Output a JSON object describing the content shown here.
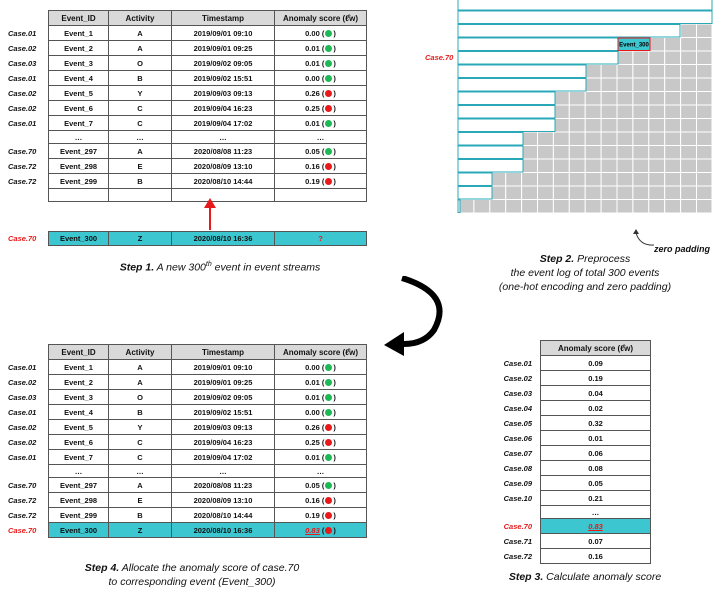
{
  "table": {
    "headers": [
      "Event_ID",
      "Activity",
      "Timestamp",
      "Anomaly score (ℓ̂w)"
    ],
    "rows": [
      {
        "case": "Case.01",
        "id": "Event_1",
        "act": "A",
        "ts": "2019/09/01 09:10",
        "score": "0.00",
        "status": "green"
      },
      {
        "case": "Case.02",
        "id": "Event_2",
        "act": "A",
        "ts": "2019/09/01 09:25",
        "score": "0.01",
        "status": "green"
      },
      {
        "case": "Case.03",
        "id": "Event_3",
        "act": "O",
        "ts": "2019/09/02 09:05",
        "score": "0.01",
        "status": "green"
      },
      {
        "case": "Case.01",
        "id": "Event_4",
        "act": "B",
        "ts": "2019/09/02 15:51",
        "score": "0.00",
        "status": "green"
      },
      {
        "case": "Case.02",
        "id": "Event_5",
        "act": "Y",
        "ts": "2019/09/03 09:13",
        "score": "0.26",
        "status": "red"
      },
      {
        "case": "Case.02",
        "id": "Event_6",
        "act": "C",
        "ts": "2019/09/04 16:23",
        "score": "0.25",
        "status": "red"
      },
      {
        "case": "Case.01",
        "id": "Event_7",
        "act": "C",
        "ts": "2019/09/04 17:02",
        "score": "0.01",
        "status": "green"
      }
    ],
    "ellipsis": "…",
    "rows2": [
      {
        "case": "Case.70",
        "id": "Event_297",
        "act": "A",
        "ts": "2020/08/08 11:23",
        "score": "0.05",
        "status": "green"
      },
      {
        "case": "Case.72",
        "id": "Event_298",
        "act": "E",
        "ts": "2020/08/09 13:10",
        "score": "0.16",
        "status": "red"
      },
      {
        "case": "Case.72",
        "id": "Event_299",
        "act": "B",
        "ts": "2020/08/10 14:44",
        "score": "0.19",
        "status": "red"
      }
    ],
    "new_event": {
      "case": "Case.70",
      "id": "Event_300",
      "act": "Z",
      "ts": "2020/08/10 16:36",
      "score": "?",
      "final_score": "0.83"
    }
  },
  "step1": {
    "bold": "Step 1.",
    "text_a": " A new 300",
    "sup": "th",
    "text_b": " event in event streams"
  },
  "step2": {
    "bold": "Step 2.",
    "line1": " Preprocess",
    "line2": "the event log of total 300 events",
    "line3": "(one-hot encoding and zero padding)",
    "case_label": "Case.70",
    "event_label": "Event_300",
    "padding_label": "zero padding"
  },
  "step3": {
    "bold": "Step 3.",
    "text": " Calculate anomaly score",
    "header": "Anomaly score (ℓ̂w)",
    "rows": [
      {
        "case": "Case.01",
        "score": "0.09"
      },
      {
        "case": "Case.02",
        "score": "0.19"
      },
      {
        "case": "Case.03",
        "score": "0.04"
      },
      {
        "case": "Case.04",
        "score": "0.02"
      },
      {
        "case": "Case.05",
        "score": "0.32"
      },
      {
        "case": "Case.06",
        "score": "0.01"
      },
      {
        "case": "Case.07",
        "score": "0.06"
      },
      {
        "case": "Case.08",
        "score": "0.08"
      },
      {
        "case": "Case.09",
        "score": "0.05"
      },
      {
        "case": "Case.10",
        "score": "0.21"
      }
    ],
    "ellipsis": "…",
    "rows2": [
      {
        "case": "Case.70",
        "score": "0.83"
      },
      {
        "case": "Case.71",
        "score": "0.07"
      },
      {
        "case": "Case.72",
        "score": "0.16"
      }
    ]
  },
  "step4": {
    "bold": "Step 4.",
    "line1": " Allocate the anomaly score of case.70",
    "line2": "to corresponding event (Event_300)"
  },
  "colors": {
    "highlight": "#3cc6cf",
    "red": "#e8191a",
    "green": "#1db954",
    "header": "#d9d9d9",
    "padding": "#c8c8c8"
  }
}
